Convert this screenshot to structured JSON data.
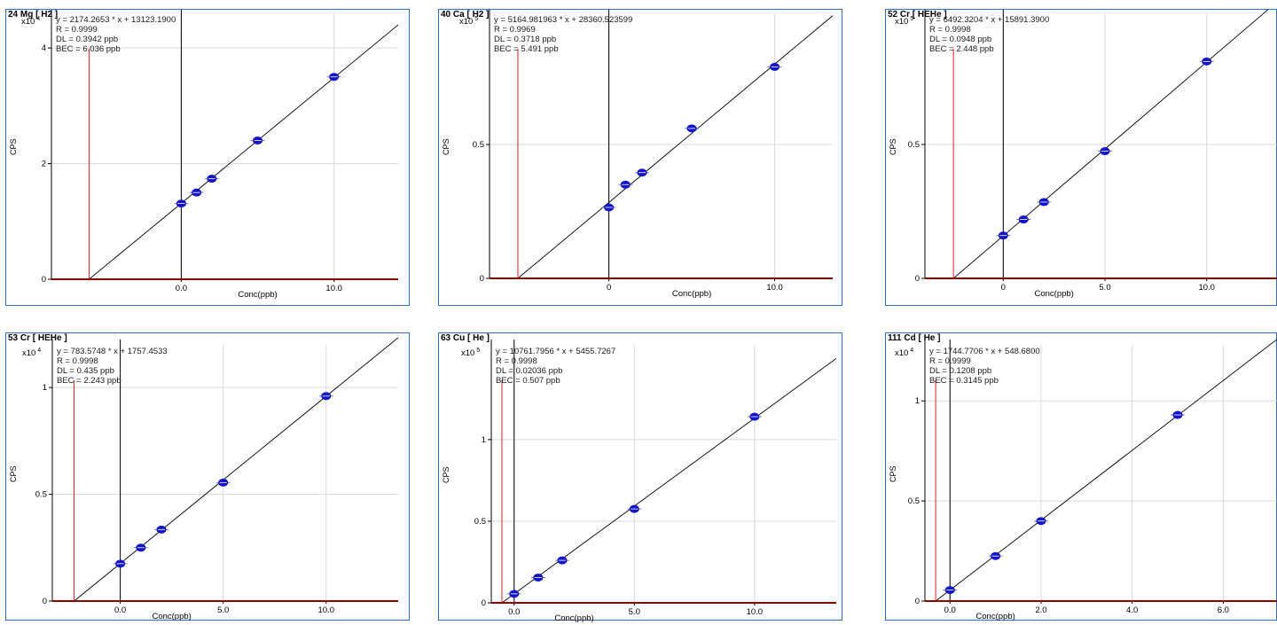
{
  "chart_data": [
    {
      "type": "scatter",
      "title": "24 Mg [ H2 ]",
      "equation": "y = 2174.2653 * x + 13123.1900",
      "r": "R = 0.9999",
      "dl": "DL = 0.3942 ppb",
      "bec": "BEC = 6.036 ppb",
      "multiplier": "x10",
      "multiplier_exp": "4",
      "ylabel": "CPS",
      "xlabel": "Conc(ppb)",
      "xlim": [
        -8.5,
        14.2
      ],
      "ylim": [
        0,
        4.6
      ],
      "xticks": [
        0,
        10
      ],
      "xtick_labels": [
        "0.0",
        "10.0"
      ],
      "yticks": [
        0,
        2,
        4
      ],
      "ytick_labels": [
        "0",
        "2",
        "4"
      ],
      "bec_x": -6.036,
      "slope": 0.21743,
      "intercept": 1.3123,
      "x": [
        0,
        1,
        2,
        5,
        10
      ],
      "y": [
        1.31,
        1.5,
        1.74,
        2.4,
        3.5
      ]
    },
    {
      "type": "scatter",
      "title": "40 Ca [ H2 ]",
      "equation": "y = 5164.981963 * x + 28360.523599",
      "r": "R = 0.9969",
      "dl": "DL = 0.3718 ppb",
      "bec": "BEC = 5.491 ppb",
      "multiplier": "x10",
      "multiplier_exp": "5",
      "ylabel": "CPS",
      "xlabel": "Conc(ppb)",
      "xlim": [
        -7.2,
        13.5
      ],
      "ylim": [
        0,
        0.99
      ],
      "xticks": [
        0,
        10
      ],
      "xtick_labels": [
        "0",
        "10.0"
      ],
      "yticks": [
        0,
        0.5
      ],
      "ytick_labels": [
        "0",
        "0.5"
      ],
      "bec_x": -5.491,
      "slope": 0.05165,
      "intercept": 0.2836,
      "x": [
        0,
        1,
        2,
        5,
        10
      ],
      "y": [
        0.265,
        0.35,
        0.395,
        0.56,
        0.79
      ]
    },
    {
      "type": "scatter",
      "title": "52 Cr [ HEHe ]",
      "equation": "y = 6492.3204 * x + 15891.3900",
      "r": "R = 0.9998",
      "dl": "DL = 0.0948 ppb",
      "bec": "BEC = 2.448 ppb",
      "multiplier": "x10",
      "multiplier_exp": "5",
      "ylabel": "CPS",
      "xlabel": "Conc(ppb)",
      "xlim": [
        -3.85,
        13.5
      ],
      "ylim": [
        0,
        0.99
      ],
      "xticks": [
        0,
        5,
        10
      ],
      "xtick_labels": [
        "0",
        "5.0",
        "10.0"
      ],
      "yticks": [
        0,
        0.5
      ],
      "ytick_labels": [
        "0",
        "0.5"
      ],
      "bec_x": -2.448,
      "slope": 0.06492,
      "intercept": 0.1589,
      "x": [
        0,
        1,
        2,
        5,
        10
      ],
      "y": [
        0.16,
        0.22,
        0.285,
        0.475,
        0.81
      ]
    },
    {
      "type": "scatter",
      "title": "53 Cr [ HEHe ]",
      "equation": "y = 783.5748 * x + 1757.4533",
      "r": "R = 0.9998",
      "dl": "DL = 0.435 ppb",
      "bec": "BEC = 2.243 ppb",
      "multiplier": "x10",
      "multiplier_exp": "4",
      "ylabel": "CPS",
      "xlabel": "Conc(ppb)",
      "xlim": [
        -3.3,
        13.5
      ],
      "ylim": [
        0,
        1.2
      ],
      "xticks": [
        0,
        5,
        10
      ],
      "xtick_labels": [
        "0.0",
        "5.0",
        "10.0"
      ],
      "yticks": [
        0,
        0.5,
        1
      ],
      "ytick_labels": [
        "0",
        "0.5",
        "1"
      ],
      "bec_x": -2.243,
      "slope": 0.07836,
      "intercept": 0.1757,
      "x": [
        0,
        1,
        2,
        5,
        10
      ],
      "y": [
        0.175,
        0.25,
        0.335,
        0.555,
        0.96
      ]
    },
    {
      "type": "scatter",
      "title": "63 Cu [ He ]",
      "equation": "y = 10761.7956 * x + 5455.7267",
      "r": "R = 0.9998",
      "dl": "DL = 0.02036 ppb",
      "bec": "BEC = 0.507 ppb",
      "multiplier": "x10",
      "multiplier_exp": "5",
      "ylabel": "CPS",
      "xlabel": "Conc(ppb)",
      "xlim": [
        -0.95,
        13.4
      ],
      "ylim": [
        0,
        1.58
      ],
      "xticks": [
        0,
        5,
        10
      ],
      "xtick_labels": [
        "0.0",
        "5.0",
        "10.0"
      ],
      "yticks": [
        0,
        0.5,
        1
      ],
      "ytick_labels": [
        "0",
        "0.5",
        "1"
      ],
      "bec_x": -0.507,
      "slope": 0.10762,
      "intercept": 0.0546,
      "x": [
        0,
        1,
        2,
        5,
        10
      ],
      "y": [
        0.055,
        0.155,
        0.26,
        0.575,
        1.14
      ]
    },
    {
      "type": "scatter",
      "title": "111 Cd [ He ]",
      "equation": "y = 1744.7706 * x + 548.6800",
      "r": "R = 0.9999",
      "dl": "DL = 0.1208 ppb",
      "bec": "BEC = 0.3145 ppb",
      "multiplier": "x10",
      "multiplier_exp": "4",
      "ylabel": "CPS",
      "xlabel": "Conc(ppb)",
      "xlim": [
        -0.55,
        7.2
      ],
      "ylim": [
        0,
        1.28
      ],
      "xticks": [
        0,
        2,
        4,
        6
      ],
      "xtick_labels": [
        "0.0",
        "2.0",
        "4.0",
        "6.0"
      ],
      "yticks": [
        0,
        0.5,
        1
      ],
      "ytick_labels": [
        "0",
        "0.5",
        "1"
      ],
      "bec_x": -0.3145,
      "slope": 0.17448,
      "intercept": 0.0549,
      "x": [
        0,
        1,
        2,
        5
      ],
      "y": [
        0.055,
        0.225,
        0.4,
        0.93
      ]
    }
  ],
  "colors": {
    "panel_border": "#2f6fc0",
    "point_fill": "#1515c8",
    "bec_line": "#e02020",
    "baseline": "#8b0000",
    "grid": "#d9d9d9",
    "axis": "#000000"
  }
}
